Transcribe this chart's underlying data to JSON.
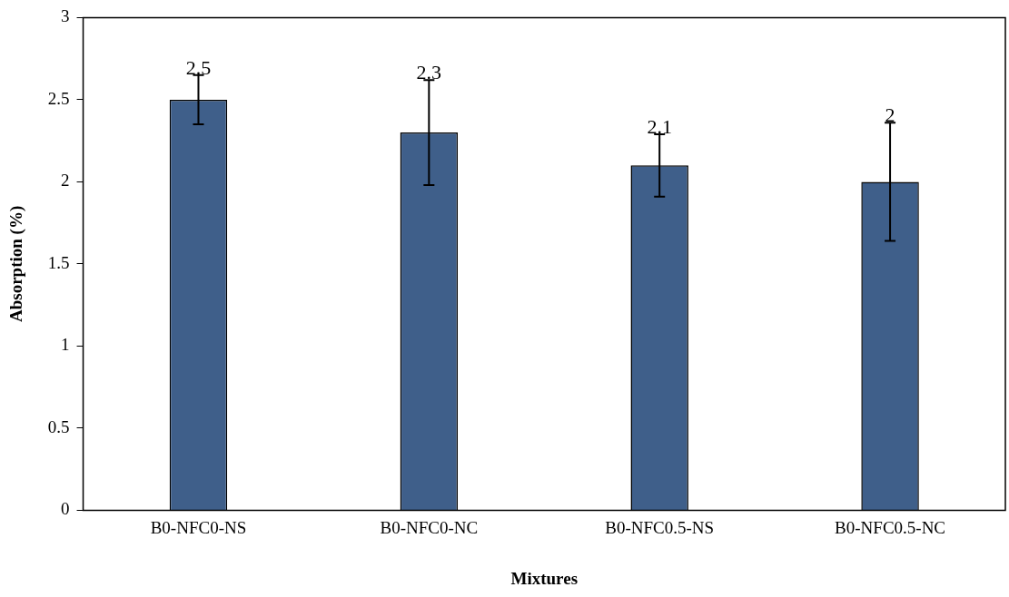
{
  "chart_data": {
    "type": "bar",
    "xlabel": "Mixtures",
    "ylabel": "Absorption (%)",
    "categories": [
      "B0-NFC0-NS",
      "B0-NFC0-NC",
      "B0-NFC0.5-NS",
      "B0-NFC0.5-NC"
    ],
    "values": [
      2.5,
      2.3,
      2.1,
      2
    ],
    "errors": [
      0.15,
      0.32,
      0.19,
      0.36
    ],
    "color": "#3f5f8a",
    "ylim": [
      0,
      3
    ],
    "yticks": [
      0,
      0.5,
      1,
      1.5,
      2,
      2.5,
      3
    ],
    "grid": false,
    "legend": false,
    "data_labels": true
  }
}
